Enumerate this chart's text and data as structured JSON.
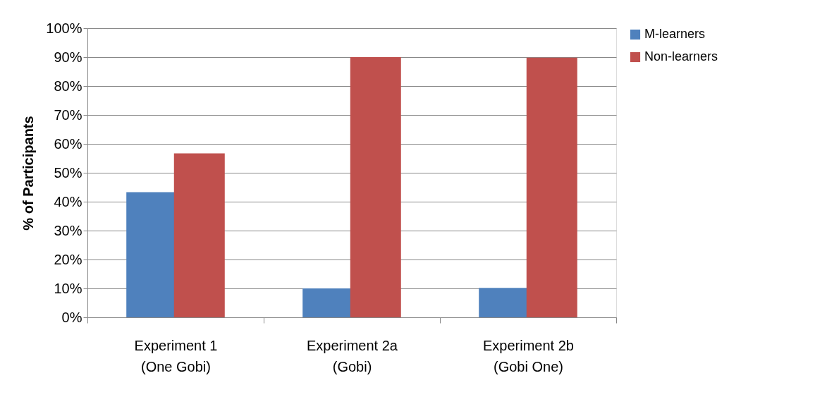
{
  "chart_data": {
    "type": "bar",
    "ylabel": "% of Participants",
    "categories": [
      "Experiment 1\n(One Gobi)",
      "Experiment 2a\n(Gobi)",
      "Experiment 2b\n(Gobi One)"
    ],
    "series": [
      {
        "name": "M-learners",
        "color": "#4f81bd",
        "values": [
          43.3,
          10,
          10.2
        ]
      },
      {
        "name": "Non-learners",
        "color": "#c0504d",
        "values": [
          56.7,
          90,
          89.8
        ]
      }
    ],
    "ylim": [
      0,
      100
    ],
    "yticks": [
      {
        "value": 0,
        "label": "0%"
      },
      {
        "value": 10,
        "label": "10%"
      },
      {
        "value": 20,
        "label": "20%"
      },
      {
        "value": 30,
        "label": "30%"
      },
      {
        "value": 40,
        "label": "40%"
      },
      {
        "value": 50,
        "label": "50%"
      },
      {
        "value": 60,
        "label": "60%"
      },
      {
        "value": 70,
        "label": "70%"
      },
      {
        "value": 80,
        "label": "80%"
      },
      {
        "value": 90,
        "label": "90%"
      },
      {
        "value": 100,
        "label": "100%"
      }
    ],
    "grid": "y",
    "legend": "right"
  }
}
